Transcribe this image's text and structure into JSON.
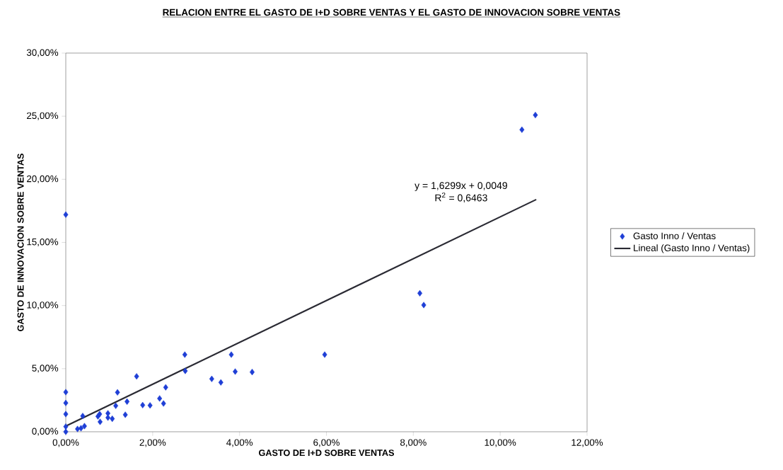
{
  "chart_data": {
    "type": "scatter",
    "title": "RELACION ENTRE EL GASTO DE I+D SOBRE VENTAS Y EL GASTO DE INNOVACION SOBRE VENTAS",
    "xlabel": "GASTO DE I+D SOBRE VENTAS",
    "ylabel": "GASTO DE INNOVACION SOBRE VENTAS",
    "xlim": [
      0,
      12
    ],
    "ylim": [
      0,
      30
    ],
    "xticks": [
      {
        "value": 0,
        "label": "0,00%"
      },
      {
        "value": 2,
        "label": "2,00%"
      },
      {
        "value": 4,
        "label": "4,00%"
      },
      {
        "value": 6,
        "label": "6,00%"
      },
      {
        "value": 8,
        "label": "8,00%"
      },
      {
        "value": 10,
        "label": "10,00%"
      },
      {
        "value": 12,
        "label": "12,00%"
      }
    ],
    "yticks": [
      {
        "value": 0,
        "label": "0,00%"
      },
      {
        "value": 5,
        "label": "5,00%"
      },
      {
        "value": 10,
        "label": "10,00%"
      },
      {
        "value": 15,
        "label": "15,00%"
      },
      {
        "value": 20,
        "label": "20,00%"
      },
      {
        "value": 25,
        "label": "25,00%"
      },
      {
        "value": 30,
        "label": "30,00%"
      }
    ],
    "grid": false,
    "legend": "right",
    "marker": "diamond",
    "annotations": [
      "y = 1,6299x + 0,0049",
      "R$^{2}$ = 0,6463"
    ],
    "series": [
      {
        "name": "Gasto Inno / Ventas",
        "color": "#1f3fd6",
        "x": [
          0,
          0,
          0,
          0,
          0,
          0,
          0.27,
          0.35,
          0.43,
          0.39,
          0.74,
          0.78,
          0.79,
          0.97,
          0.97,
          1.07,
          1.15,
          1.19,
          1.37,
          1.41,
          1.63,
          1.77,
          1.94,
          2.16,
          2.25,
          2.3,
          2.74,
          2.75,
          3.36,
          3.57,
          3.81,
          3.9,
          4.29,
          5.96,
          8.15,
          8.24,
          10.5,
          10.81
        ],
        "values": [
          17.2,
          3.14,
          2.28,
          1.4,
          0.41,
          0,
          0.22,
          0.28,
          0.45,
          1.25,
          1.22,
          1.4,
          0.79,
          1.46,
          1.12,
          1.03,
          2.06,
          3.12,
          1.35,
          2.39,
          4.39,
          2.11,
          2.09,
          2.64,
          2.24,
          3.52,
          6.11,
          4.82,
          4.19,
          3.91,
          6.11,
          4.77,
          4.73,
          6.11,
          10.97,
          10.04,
          23.93,
          25.09
        ]
      },
      {
        "name": "Lineal (Gasto Inno / Ventas)",
        "type": "line",
        "color": "#2a2a33",
        "marker": "none",
        "line_style": "solid",
        "x": [
          0,
          10.83
        ],
        "values": [
          0.45,
          18.4
        ]
      }
    ]
  }
}
